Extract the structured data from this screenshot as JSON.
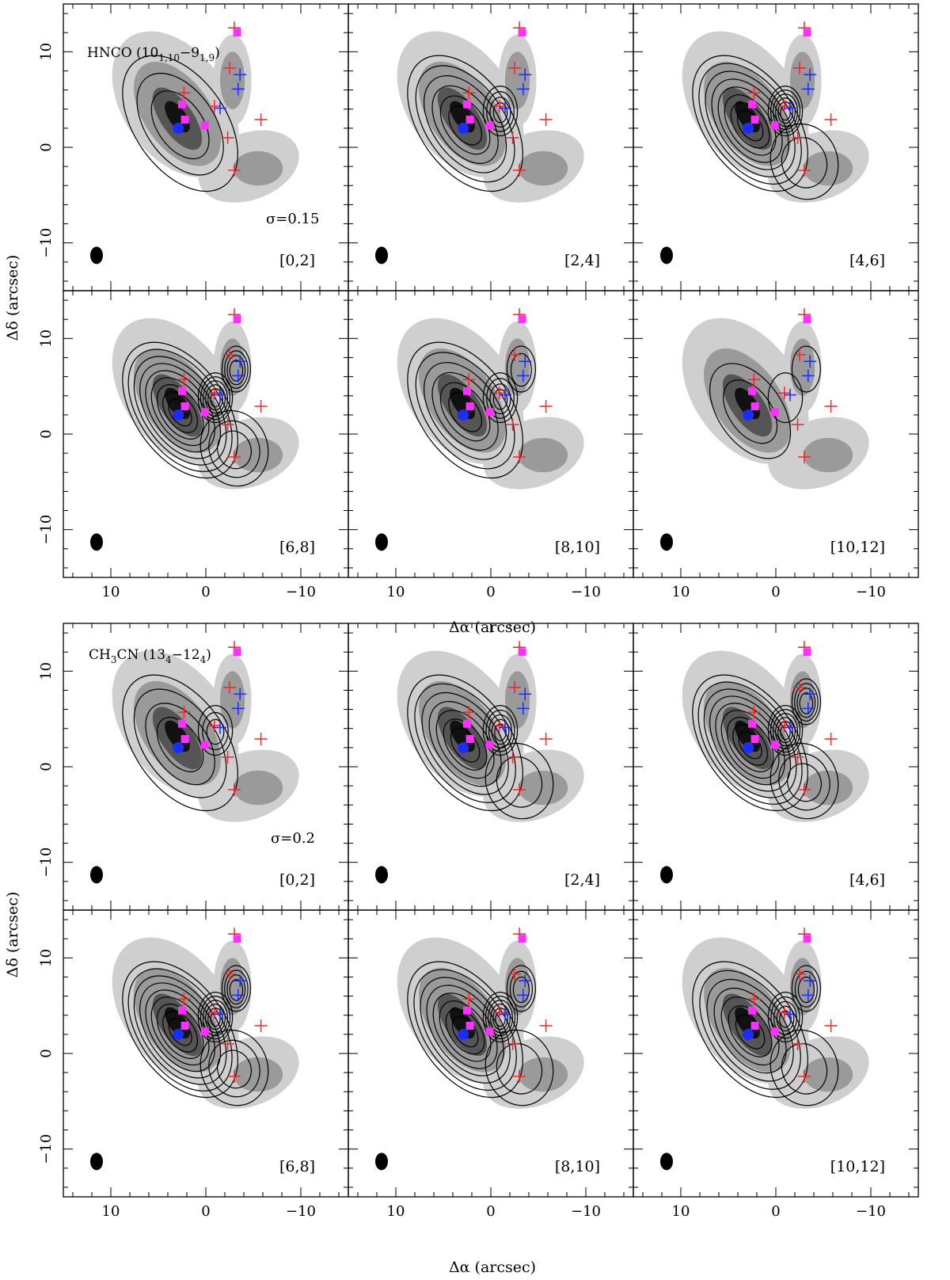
{
  "figure": {
    "x_axis_label": "Δα (arcsec)",
    "y_axis_label": "Δδ (arcsec)",
    "x_ticks": [
      "10",
      "0",
      "−10"
    ],
    "y_ticks": [
      "10",
      "0",
      "−10"
    ]
  },
  "chart_data": [
    {
      "type": "contour",
      "molecule_label": "HNCO (10",
      "molecule_sub1": "1,10",
      "molecule_mid": "−9",
      "molecule_sub2": "1,9",
      "molecule_end": ")",
      "sigma_label": "σ=0.15",
      "xlim": [
        15,
        -15
      ],
      "ylim": [
        -15,
        15
      ],
      "xlabel": "Δα (arcsec)",
      "ylabel": "Δδ (arcsec)",
      "panels": [
        {
          "velocity_range": "[0,2]",
          "contour_levels": 3,
          "peak": [
            2.5,
            3.5
          ]
        },
        {
          "velocity_range": "[2,4]",
          "contour_levels": 6,
          "peak": [
            2.5,
            3.0
          ]
        },
        {
          "velocity_range": "[4,6]",
          "contour_levels": 8,
          "peak": [
            2.5,
            2.5
          ]
        },
        {
          "velocity_range": "[6,8]",
          "contour_levels": 9,
          "peak": [
            2.5,
            2.0
          ]
        },
        {
          "velocity_range": "[8,10]",
          "contour_levels": 6,
          "peak": [
            2.5,
            2.0
          ]
        },
        {
          "velocity_range": "[10,12]",
          "contour_levels": 2,
          "peak": [
            2.5,
            2.0
          ]
        }
      ]
    },
    {
      "type": "contour",
      "molecule_label": "CH",
      "molecule_sub1": "3",
      "molecule_mid": "CN (13",
      "molecule_sub2": "4",
      "molecule_end": "−12",
      "molecule_sub3": "4",
      "molecule_close": ")",
      "sigma_label": "σ=0.2",
      "xlim": [
        15,
        -15
      ],
      "ylim": [
        -15,
        15
      ],
      "xlabel": "Δα (arcsec)",
      "ylabel": "Δδ (arcsec)",
      "panels": [
        {
          "velocity_range": "[0,2]",
          "contour_levels": 4,
          "peak": [
            2.5,
            3.5
          ]
        },
        {
          "velocity_range": "[2,4]",
          "contour_levels": 7,
          "peak": [
            2.5,
            3.0
          ]
        },
        {
          "velocity_range": "[4,6]",
          "contour_levels": 9,
          "peak": [
            2.5,
            2.5
          ]
        },
        {
          "velocity_range": "[6,8]",
          "contour_levels": 9,
          "peak": [
            2.5,
            2.0
          ]
        },
        {
          "velocity_range": "[8,10]",
          "contour_levels": 8,
          "peak": [
            2.5,
            2.0
          ]
        },
        {
          "velocity_range": "[10,12]",
          "contour_levels": 7,
          "peak": [
            2.5,
            2.0
          ]
        }
      ]
    }
  ],
  "markers": {
    "red_crosses": [
      [
        -3,
        12.5
      ],
      [
        -2.5,
        8.3
      ],
      [
        2.3,
        5.7
      ],
      [
        -0.9,
        4.3
      ],
      [
        -5.8,
        2.9
      ],
      [
        -2.3,
        1.0
      ],
      [
        -3.0,
        -2.4
      ]
    ],
    "blue_crosses": [
      [
        -3.6,
        7.6
      ],
      [
        -3.4,
        6.1
      ],
      [
        -1.5,
        4.1
      ]
    ],
    "magenta_squares": [
      [
        -3.3,
        12.0
      ],
      [
        2.5,
        4.5
      ],
      [
        2.2,
        2.9
      ],
      [
        0.1,
        2.3
      ]
    ],
    "blue_circle": [
      2.9,
      2.0
    ],
    "beam": [
      11.5,
      -11.3
    ],
    "colors": {
      "red": "#ff2020",
      "blue": "#1a2cff",
      "magenta": "#ff30ff",
      "grey_light": "#cfcfcf",
      "grey_mid": "#9a9a9a",
      "grey_dark": "#555555"
    }
  }
}
